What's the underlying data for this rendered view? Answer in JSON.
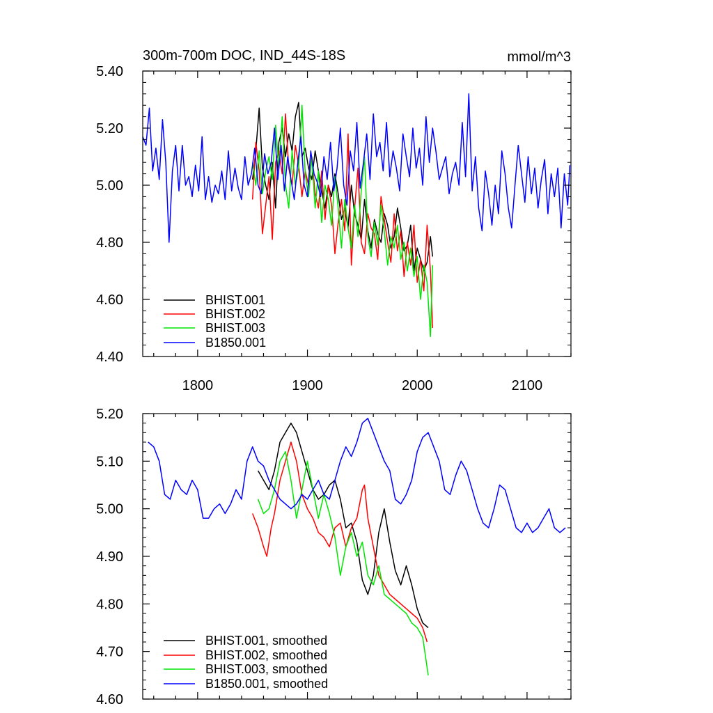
{
  "chart_data": [
    {
      "type": "line",
      "title": "300m-700m DOC, IND_44S-18S",
      "units": "mmol/m^3",
      "xlim": [
        1750,
        2140
      ],
      "ylim": [
        4.4,
        5.4
      ],
      "yticks": [
        "4.40",
        "4.60",
        "4.80",
        "5.00",
        "5.20",
        "5.40"
      ],
      "xticks": [
        "1800",
        "1900",
        "2000",
        "2100"
      ],
      "legend_position": "bottom-left",
      "series": [
        {
          "name": "BHIST.001",
          "color": "#000000",
          "x": [
            1850,
            1853,
            1856,
            1859,
            1862,
            1865,
            1868,
            1871,
            1874,
            1877,
            1880,
            1883,
            1886,
            1889,
            1892,
            1895,
            1898,
            1901,
            1904,
            1907,
            1910,
            1913,
            1916,
            1919,
            1922,
            1925,
            1928,
            1931,
            1934,
            1937,
            1940,
            1943,
            1946,
            1949,
            1952,
            1955,
            1958,
            1961,
            1964,
            1967,
            1970,
            1973,
            1976,
            1979,
            1982,
            1985,
            1988,
            1991,
            1994,
            1997,
            2000,
            2003,
            2006,
            2009,
            2012,
            2014
          ],
          "values": [
            5.02,
            5.12,
            5.27,
            5.06,
            5.0,
            4.95,
            5.08,
            4.92,
            5.15,
            5.2,
            5.1,
            5.18,
            5.12,
            5.24,
            5.29,
            5.1,
            5.13,
            5.06,
            5.02,
            5.12,
            5.05,
            4.98,
            4.92,
            5.0,
            4.96,
            5.04,
            4.97,
            4.88,
            4.92,
            4.85,
            5.0,
            4.9,
            4.86,
            4.81,
            4.95,
            4.84,
            4.78,
            4.88,
            4.83,
            4.8,
            4.9,
            4.86,
            4.78,
            4.82,
            4.92,
            4.85,
            4.77,
            4.79,
            4.86,
            4.7,
            4.78,
            4.74,
            4.7,
            4.73,
            4.82,
            4.75
          ]
        },
        {
          "name": "BHIST.002",
          "color": "#ff0000",
          "x": [
            1850,
            1853,
            1856,
            1859,
            1862,
            1865,
            1868,
            1871,
            1874,
            1877,
            1880,
            1883,
            1886,
            1889,
            1892,
            1895,
            1898,
            1901,
            1904,
            1907,
            1910,
            1913,
            1916,
            1919,
            1922,
            1925,
            1928,
            1931,
            1934,
            1937,
            1940,
            1943,
            1946,
            1949,
            1952,
            1955,
            1958,
            1961,
            1964,
            1967,
            1970,
            1973,
            1976,
            1979,
            1982,
            1985,
            1988,
            1991,
            1994,
            1997,
            2000,
            2003,
            2006,
            2009,
            2012,
            2014
          ],
          "values": [
            4.95,
            5.15,
            5.05,
            4.83,
            4.93,
            5.03,
            4.81,
            5.08,
            5.12,
            5.04,
            5.25,
            5.06,
            5.0,
            5.14,
            5.07,
            4.96,
            5.05,
            5.0,
            5.1,
            4.97,
            4.92,
            5.05,
            4.88,
            5.0,
            4.93,
            4.76,
            4.87,
            4.95,
            4.84,
            5.18,
            4.72,
            4.92,
            5.06,
            4.8,
            4.76,
            4.9,
            4.85,
            4.83,
            4.74,
            4.96,
            4.88,
            4.8,
            4.73,
            4.9,
            4.77,
            4.84,
            4.68,
            4.8,
            4.72,
            4.86,
            4.66,
            4.74,
            4.63,
            4.86,
            4.7,
            4.5
          ]
        },
        {
          "name": "BHIST.003",
          "color": "#00e600",
          "x": [
            1850,
            1853,
            1856,
            1859,
            1862,
            1865,
            1868,
            1871,
            1874,
            1877,
            1880,
            1883,
            1886,
            1889,
            1892,
            1895,
            1898,
            1901,
            1904,
            1907,
            1910,
            1913,
            1916,
            1919,
            1922,
            1925,
            1928,
            1931,
            1934,
            1937,
            1940,
            1943,
            1946,
            1949,
            1952,
            1955,
            1958,
            1961,
            1964,
            1967,
            1970,
            1973,
            1976,
            1979,
            1982,
            1985,
            1988,
            1991,
            1994,
            1997,
            2000,
            2003,
            2006,
            2009,
            2012,
            2014
          ],
          "values": [
            5.08,
            5.0,
            5.12,
            4.97,
            5.05,
            5.1,
            5.02,
            5.21,
            5.06,
            5.24,
            5.0,
            4.92,
            5.12,
            5.0,
            5.06,
            5.28,
            5.04,
            4.96,
            5.1,
            4.92,
            5.05,
            4.87,
            5.0,
            4.95,
            4.86,
            5.03,
            4.92,
            4.78,
            4.95,
            4.85,
            4.78,
            4.93,
            4.82,
            4.98,
            5.1,
            4.82,
            4.75,
            4.87,
            4.79,
            4.93,
            4.84,
            4.72,
            4.82,
            4.78,
            4.86,
            4.74,
            4.8,
            4.7,
            4.78,
            4.68,
            4.75,
            4.6,
            4.72,
            4.66,
            4.47,
            4.72
          ]
        },
        {
          "name": "B1850.001",
          "color": "#0000ff",
          "x": [
            1750,
            1753,
            1756,
            1759,
            1762,
            1765,
            1768,
            1771,
            1774,
            1777,
            1780,
            1783,
            1786,
            1789,
            1792,
            1795,
            1798,
            1801,
            1804,
            1807,
            1810,
            1813,
            1816,
            1819,
            1822,
            1825,
            1828,
            1831,
            1834,
            1837,
            1840,
            1843,
            1846,
            1849,
            1852,
            1855,
            1858,
            1861,
            1864,
            1867,
            1870,
            1873,
            1876,
            1879,
            1882,
            1885,
            1888,
            1891,
            1894,
            1897,
            1900,
            1903,
            1906,
            1909,
            1912,
            1915,
            1918,
            1921,
            1924,
            1927,
            1930,
            1933,
            1936,
            1939,
            1942,
            1945,
            1948,
            1951,
            1954,
            1957,
            1960,
            1963,
            1966,
            1969,
            1972,
            1975,
            1978,
            1981,
            1984,
            1987,
            1990,
            1993,
            1996,
            1999,
            2002,
            2005,
            2008,
            2011,
            2014,
            2017,
            2020,
            2023,
            2026,
            2029,
            2032,
            2035,
            2038,
            2041,
            2044,
            2047,
            2050,
            2053,
            2056,
            2059,
            2062,
            2065,
            2068,
            2071,
            2074,
            2077,
            2080,
            2083,
            2086,
            2089,
            2092,
            2095,
            2098,
            2101,
            2104,
            2107,
            2110,
            2113,
            2116,
            2119,
            2122,
            2125,
            2128,
            2131,
            2134,
            2137,
            2139
          ],
          "values": [
            5.17,
            5.14,
            5.27,
            5.05,
            5.13,
            5.02,
            5.23,
            5.08,
            4.8,
            5.05,
            5.14,
            4.98,
            5.14,
            5.0,
            5.03,
            4.96,
            5.07,
            4.98,
            5.17,
            4.95,
            5.03,
            4.94,
            5.0,
            4.97,
            5.05,
            4.95,
            5.12,
            4.98,
            5.06,
            4.99,
            4.95,
            5.1,
            5.0,
            5.04,
            5.13,
            5.0,
            4.97,
            5.11,
            5.04,
            5.08,
            5.2,
            5.02,
            5.14,
            4.98,
            5.1,
            5.02,
            4.95,
            5.07,
            5.17,
            5.0,
            4.96,
            5.12,
            5.04,
            5.01,
            4.96,
            5.1,
            5.02,
            5.15,
            4.98,
            5.06,
            5.2,
            5.0,
            4.93,
            5.12,
            5.05,
            5.22,
            4.99,
            5.08,
            5.18,
            5.02,
            5.25,
            5.1,
            5.15,
            5.05,
            5.22,
            5.03,
            5.12,
            5.06,
            4.98,
            5.18,
            5.1,
            5.03,
            5.2,
            5.06,
            5.13,
            5.0,
            5.24,
            5.08,
            5.2,
            5.12,
            5.02,
            5.06,
            5.1,
            4.97,
            5.04,
            5.08,
            5.0,
            5.22,
            5.03,
            5.32,
            4.98,
            5.1,
            4.92,
            4.84,
            5.05,
            4.97,
            4.86,
            5.0,
            4.9,
            5.12,
            5.04,
            4.92,
            4.85,
            5.0,
            5.14,
            5.04,
            4.94,
            5.1,
            4.97,
            5.06,
            4.92,
            5.02,
            5.09,
            4.9,
            5.04,
            4.96,
            5.06,
            4.85,
            5.04,
            4.93,
            5.07
          ]
        }
      ]
    },
    {
      "type": "line",
      "title": "",
      "xlim": [
        1750,
        2140
      ],
      "ylim": [
        4.6,
        5.2
      ],
      "yticks": [
        "4.60",
        "4.70",
        "4.80",
        "4.90",
        "5.00",
        "5.10",
        "5.20"
      ],
      "legend_position": "bottom-left",
      "series": [
        {
          "name": "BHIST.001, smoothed",
          "color": "#000000",
          "x": [
            1855,
            1860,
            1865,
            1870,
            1875,
            1880,
            1885,
            1890,
            1895,
            1900,
            1905,
            1910,
            1915,
            1920,
            1925,
            1930,
            1935,
            1940,
            1945,
            1950,
            1955,
            1960,
            1965,
            1970,
            1975,
            1980,
            1985,
            1990,
            1995,
            2000,
            2005,
            2010
          ],
          "values": [
            5.08,
            5.06,
            5.04,
            5.08,
            5.14,
            5.16,
            5.18,
            5.16,
            5.12,
            5.08,
            5.04,
            5.02,
            5.03,
            5.05,
            5.06,
            5.02,
            4.96,
            4.97,
            4.93,
            4.85,
            4.82,
            4.86,
            4.95,
            5.0,
            4.93,
            4.87,
            4.84,
            4.88,
            4.84,
            4.79,
            4.76,
            4.75
          ]
        },
        {
          "name": "BHIST.002, smoothed",
          "color": "#ff0000",
          "x": [
            1850,
            1855,
            1860,
            1863,
            1867,
            1870,
            1875,
            1880,
            1885,
            1890,
            1895,
            1900,
            1905,
            1910,
            1915,
            1920,
            1925,
            1930,
            1935,
            1940,
            1945,
            1950,
            1952,
            1955,
            1960,
            1965,
            1970,
            1975,
            1980,
            1985,
            1990,
            1995,
            2000,
            2005,
            2009
          ],
          "values": [
            4.99,
            4.96,
            4.92,
            4.9,
            4.96,
            4.99,
            5.06,
            5.1,
            5.14,
            5.1,
            5.03,
            5.0,
            4.98,
            4.95,
            4.94,
            4.92,
            4.96,
            4.97,
            4.92,
            4.96,
            4.98,
            5.04,
            5.05,
            4.98,
            4.92,
            4.86,
            4.84,
            4.82,
            4.81,
            4.8,
            4.79,
            4.78,
            4.77,
            4.75,
            4.72
          ]
        },
        {
          "name": "BHIST.003, smoothed",
          "color": "#00e600",
          "x": [
            1855,
            1860,
            1865,
            1870,
            1875,
            1880,
            1885,
            1890,
            1895,
            1900,
            1905,
            1910,
            1915,
            1920,
            1925,
            1930,
            1935,
            1940,
            1945,
            1950,
            1955,
            1960,
            1965,
            1970,
            1975,
            1980,
            1985,
            1990,
            1995,
            2000,
            2005,
            2010
          ],
          "values": [
            5.02,
            4.99,
            5.0,
            5.04,
            5.1,
            5.12,
            5.06,
            4.98,
            5.04,
            5.1,
            5.04,
            4.98,
            5.03,
            4.99,
            4.94,
            4.86,
            4.92,
            4.95,
            4.9,
            4.93,
            4.86,
            4.84,
            4.88,
            4.82,
            4.81,
            4.8,
            4.79,
            4.78,
            4.76,
            4.75,
            4.73,
            4.65
          ]
        },
        {
          "name": "B1850.001, smoothed",
          "color": "#0000ff",
          "x": [
            1755,
            1760,
            1765,
            1770,
            1775,
            1780,
            1785,
            1790,
            1795,
            1800,
            1805,
            1810,
            1815,
            1820,
            1825,
            1830,
            1835,
            1840,
            1845,
            1850,
            1855,
            1860,
            1865,
            1870,
            1875,
            1880,
            1885,
            1890,
            1895,
            1900,
            1905,
            1910,
            1915,
            1920,
            1925,
            1930,
            1935,
            1940,
            1945,
            1950,
            1955,
            1960,
            1965,
            1970,
            1975,
            1980,
            1985,
            1990,
            1995,
            2000,
            2005,
            2010,
            2015,
            2020,
            2025,
            2030,
            2035,
            2040,
            2045,
            2050,
            2055,
            2060,
            2065,
            2070,
            2075,
            2080,
            2085,
            2090,
            2095,
            2100,
            2105,
            2110,
            2115,
            2120,
            2125,
            2130,
            2135
          ],
          "values": [
            5.14,
            5.13,
            5.1,
            5.03,
            5.02,
            5.06,
            5.04,
            5.03,
            5.06,
            5.04,
            4.98,
            4.98,
            5.0,
            5.01,
            4.99,
            5.01,
            5.04,
            5.02,
            5.1,
            5.13,
            5.1,
            5.09,
            5.06,
            5.04,
            5.02,
            5.01,
            5.0,
            5.01,
            5.03,
            5.02,
            5.04,
            5.06,
            5.03,
            5.02,
            5.06,
            5.1,
            5.13,
            5.11,
            5.14,
            5.18,
            5.19,
            5.16,
            5.13,
            5.1,
            5.08,
            5.02,
            5.01,
            5.03,
            5.06,
            5.12,
            5.15,
            5.16,
            5.13,
            5.1,
            5.04,
            5.03,
            5.07,
            5.1,
            5.08,
            5.04,
            5.0,
            4.97,
            4.96,
            5.0,
            5.05,
            5.04,
            5.0,
            4.96,
            4.95,
            4.97,
            4.95,
            4.96,
            4.98,
            5.0,
            4.96,
            4.95,
            4.96
          ]
        }
      ]
    }
  ]
}
